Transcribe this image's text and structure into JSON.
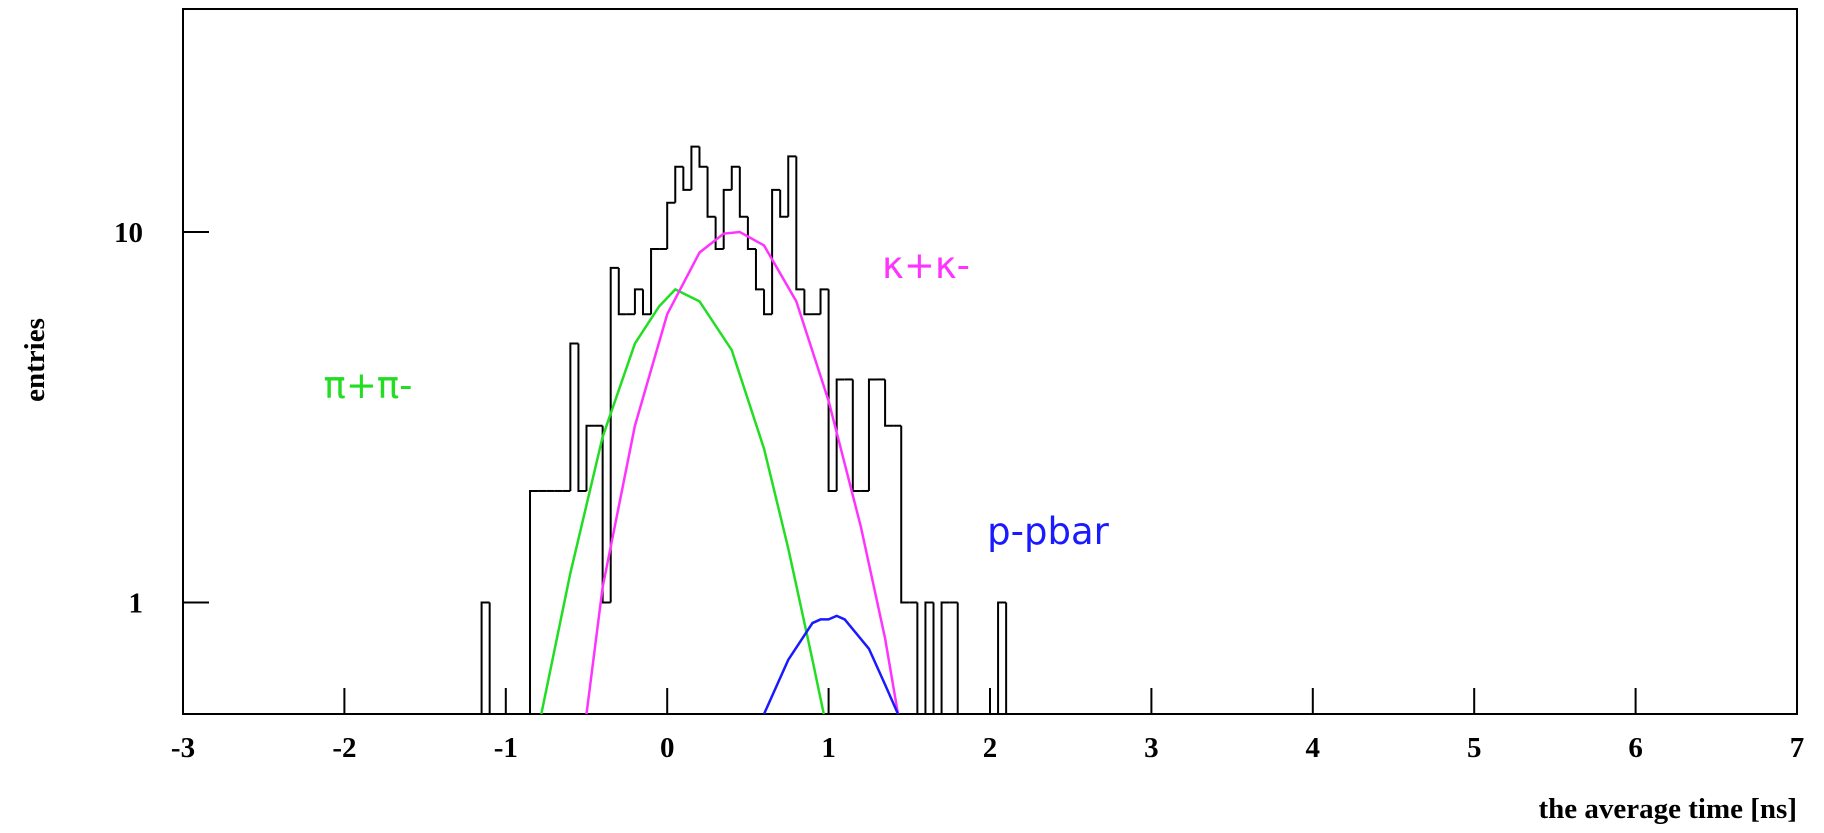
{
  "chart_data": {
    "type": "histogram",
    "x_label": "the average time [ns]",
    "y_label": "entries",
    "log_y": true,
    "xlim": [
      -3,
      7
    ],
    "xticks": [
      -3,
      -2,
      -1,
      0,
      1,
      2,
      3,
      4,
      5,
      6,
      7
    ],
    "ylim": [
      0.5,
      40
    ],
    "yticks": [
      1,
      10
    ],
    "color": "#000000",
    "bins": [
      -1.2,
      -1.15,
      -1.1,
      -1.05,
      -1.0,
      -0.95,
      -0.9,
      -0.85,
      -0.8,
      -0.75,
      -0.7,
      -0.65,
      -0.6,
      -0.55,
      -0.5,
      -0.45,
      -0.4,
      -0.35,
      -0.3,
      -0.25,
      -0.2,
      -0.15,
      -0.1,
      -0.05,
      0.0,
      0.05,
      0.1,
      0.15,
      0.2,
      0.25,
      0.3,
      0.35,
      0.4,
      0.45,
      0.5,
      0.55,
      0.6,
      0.65,
      0.7,
      0.75,
      0.8,
      0.85,
      0.9,
      0.95,
      1.0,
      1.05,
      1.1,
      1.15,
      1.2,
      1.25,
      1.3,
      1.35,
      1.4,
      1.45,
      1.5,
      1.55,
      1.6,
      1.65,
      1.7,
      1.75,
      1.8,
      1.85,
      1.9,
      1.95,
      2.0,
      2.05,
      2.1,
      2.15
    ],
    "values": [
      0,
      1,
      0,
      0,
      0,
      0,
      0,
      2,
      2,
      2,
      2,
      2,
      5,
      2,
      3,
      3,
      1,
      8,
      6,
      6,
      7,
      6,
      9,
      9,
      12,
      15,
      13,
      17,
      15,
      11,
      9,
      13,
      15,
      11,
      9,
      7,
      6,
      13,
      11,
      16,
      7,
      6,
      6,
      7,
      2,
      4,
      4,
      2,
      2,
      4,
      4,
      3,
      3,
      1,
      1,
      0,
      1,
      0,
      1,
      1,
      0,
      0,
      0,
      0,
      0,
      1,
      0
    ],
    "series": [
      {
        "name": "π+π-",
        "color": "#22dd22",
        "x": [
          -0.78,
          -0.6,
          -0.4,
          -0.2,
          -0.05,
          0.05,
          0.2,
          0.4,
          0.6,
          0.75,
          0.9,
          0.97
        ],
        "values": [
          0.5,
          1.2,
          2.8,
          5.0,
          6.3,
          7,
          6.5,
          4.8,
          2.6,
          1.4,
          0.7,
          0.5
        ]
      },
      {
        "name": "κ+κ-",
        "color": "#ff33ff",
        "x": [
          -0.5,
          -0.4,
          -0.2,
          0,
          0.2,
          0.35,
          0.45,
          0.6,
          0.8,
          1.0,
          1.2,
          1.35,
          1.43
        ],
        "values": [
          0.5,
          1.1,
          3.0,
          6.0,
          8.8,
          9.9,
          10,
          9.2,
          6.5,
          3.5,
          1.6,
          0.8,
          0.5
        ]
      },
      {
        "name": "p-pbar",
        "color": "#1a1aff",
        "x": [
          0.6,
          0.75,
          0.9,
          0.95,
          1.0,
          1.05,
          1.1,
          1.25,
          1.35,
          1.43
        ],
        "values": [
          0.5,
          0.7,
          0.88,
          0.9,
          0.9,
          0.92,
          0.9,
          0.75,
          0.6,
          0.5
        ]
      }
    ]
  }
}
